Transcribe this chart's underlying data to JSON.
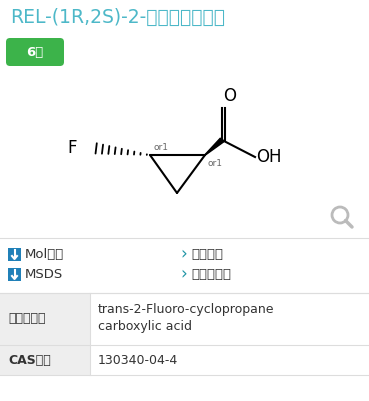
{
  "title": "REL-(1R,2S)-2-氟代环丙烷缧酸",
  "badge_text": "6级",
  "badge_color": "#3cb34a",
  "badge_text_color": "#ffffff",
  "mol_label": "Mol下载",
  "msds_label": "MSDS",
  "chem_label": "化学性质",
  "supplier_label": "国外供应商",
  "arrow_color": "#2196a6",
  "icon_color": "#2080b8",
  "table_header_bg": "#eeeeee",
  "table_row1_bg": "#ffffff",
  "row1_label": "英文名称：",
  "row1_value_line1": "trans-2-Fluoro-cyclopropane",
  "row1_value_line2": "carboxylic acid",
  "row2_label": "CAS号：",
  "row2_value": "130340-04-4",
  "bg_color": "#ffffff",
  "title_color": "#4db8c8",
  "body_text_color": "#333333",
  "search_icon_color": "#bbbbbb",
  "border_color": "#dddddd",
  "link_color": "#2196a6"
}
